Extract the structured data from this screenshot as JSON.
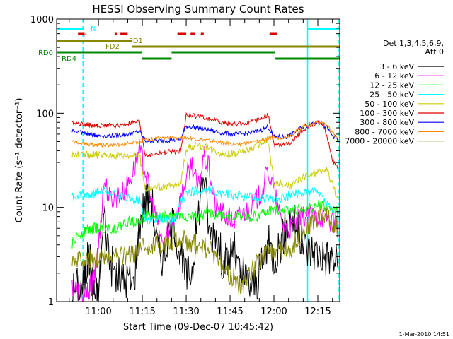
{
  "chart_data": {
    "type": "line",
    "title": "HESSI Observing Summary Count Rates",
    "xlabel": "Start Time (09-Dec-07 10:45:42)",
    "ylabel": "Count Rate (s⁻¹ detector⁻¹)",
    "y_scale": "log",
    "ylim": [
      1,
      1000
    ],
    "y_ticks": [
      {
        "value": 1,
        "label": "1"
      },
      {
        "value": 10,
        "label": "10"
      },
      {
        "value": 100,
        "label": "100"
      },
      {
        "value": 1000,
        "label": "1000"
      }
    ],
    "x_ticks": [
      {
        "value": 660,
        "label": "11:00"
      },
      {
        "value": 675,
        "label": "11:15"
      },
      {
        "value": 690,
        "label": "11:30"
      },
      {
        "value": 705,
        "label": "11:45"
      },
      {
        "value": 720,
        "label": "12:00"
      },
      {
        "value": 735,
        "label": "12:15"
      }
    ],
    "xlim": [
      645.7,
      742.5
    ],
    "legend": {
      "position": "right",
      "header": [
        "Det 1,3,4,5,6,9,",
        "Att 0"
      ],
      "entries": [
        {
          "label": "3 - 6 keV",
          "color": "#000000"
        },
        {
          "label": "6 - 12 keV",
          "color": "#ff00ff"
        },
        {
          "label": "12 - 25 keV",
          "color": "#00ff00"
        },
        {
          "label": "25 - 50 keV",
          "color": "#00ffff"
        },
        {
          "label": "50 - 100 keV",
          "color": "#cccc00"
        },
        {
          "label": "100 - 300 keV",
          "color": "#dd0000"
        },
        {
          "label": "300 - 800 keV",
          "color": "#0000ff"
        },
        {
          "label": "800 - 7000 keV",
          "color": "#ff8800"
        },
        {
          "label": "7000 - 20000 keV",
          "color": "#888800"
        }
      ]
    },
    "series": [
      {
        "name": "3 - 6 keV",
        "color": "#000000",
        "x": [
          651,
          653,
          655,
          656,
          657,
          658,
          659,
          660,
          662,
          664,
          666,
          668,
          670,
          672,
          674,
          676,
          678,
          680,
          682,
          684,
          686,
          688,
          690,
          692,
          694,
          696,
          698,
          700,
          702,
          704,
          706,
          708,
          710,
          712,
          714,
          716,
          718,
          720,
          722,
          724,
          726,
          728,
          730,
          732,
          734,
          736,
          738,
          740,
          742
        ],
        "y": [
          1.3,
          1.5,
          1.5,
          2.5,
          3,
          1.4,
          1.2,
          1.2,
          9,
          2.6,
          1.9,
          1.7,
          1.8,
          1.5,
          7,
          12,
          14,
          4,
          3,
          5,
          7,
          3,
          1.8,
          2.2,
          8,
          25,
          5,
          6,
          3,
          2.5,
          4,
          2,
          1.8,
          1.5,
          1.5,
          2.5,
          4,
          3,
          4,
          6,
          8,
          6,
          4,
          3.5,
          3.5,
          3.2,
          3,
          2.8,
          2.6
        ]
      },
      {
        "name": "6 - 12 keV",
        "color": "#ff00ff",
        "x": [
          651,
          653,
          655,
          656,
          657,
          658,
          659,
          660,
          662,
          664,
          666,
          668,
          670,
          672,
          674,
          676,
          678,
          680,
          682,
          684,
          686,
          688,
          690,
          692,
          694,
          696,
          698,
          700,
          702,
          704,
          706,
          708,
          710,
          712,
          714,
          716,
          718,
          720,
          722,
          724,
          726,
          728,
          730,
          732,
          734,
          736,
          738,
          740,
          742
        ],
        "y": [
          1.5,
          1.3,
          1.2,
          1.2,
          1.4,
          1.6,
          2,
          4,
          20,
          12,
          13,
          14,
          18,
          25,
          40,
          25,
          12,
          7,
          4,
          6,
          8,
          12,
          20,
          30,
          15,
          35,
          25,
          10,
          9,
          8,
          7,
          8,
          9,
          10,
          12,
          15,
          25,
          15,
          8,
          6,
          6,
          7,
          8,
          8,
          8,
          8,
          8,
          7,
          7
        ]
      },
      {
        "name": "12 - 25 keV",
        "color": "#00ff00",
        "x": [
          651,
          653,
          655,
          656,
          657,
          658,
          659,
          660,
          662,
          664,
          666,
          668,
          670,
          672,
          674,
          676,
          678,
          680,
          682,
          684,
          686,
          688,
          690,
          692,
          694,
          696,
          698,
          700,
          702,
          704,
          706,
          708,
          710,
          712,
          714,
          716,
          718,
          720,
          722,
          724,
          726,
          728,
          730,
          732,
          734,
          736,
          738,
          740,
          742
        ],
        "y": [
          4,
          5,
          5.5,
          6,
          6,
          6,
          6,
          6,
          6,
          6,
          6,
          6.5,
          7,
          7,
          7.5,
          8,
          8,
          8,
          8,
          8,
          8,
          8,
          8,
          8,
          8,
          8.5,
          9,
          8.5,
          8.5,
          8,
          8,
          8,
          8,
          8,
          8,
          8.5,
          9,
          9.5,
          9.5,
          9.5,
          9.5,
          9.5,
          9.5,
          9.5,
          10,
          10.5,
          10,
          9.5,
          9
        ]
      },
      {
        "name": "25 - 50 keV",
        "color": "#00ffff",
        "x": [
          651,
          653,
          655,
          656,
          657,
          658,
          659,
          660,
          662,
          664,
          666,
          668,
          670,
          672,
          674,
          676,
          678,
          680,
          682,
          684,
          686,
          688,
          690,
          692,
          694,
          696,
          698,
          700,
          702,
          704,
          706,
          708,
          710,
          712,
          714,
          716,
          718,
          720,
          722,
          724,
          726,
          728,
          730,
          732,
          734,
          736,
          738,
          740,
          742
        ],
        "y": [
          13,
          13,
          13.5,
          13.5,
          14,
          14,
          14,
          14.5,
          14.5,
          14,
          13.5,
          13,
          12.5,
          12,
          12,
          7.5,
          7.5,
          7.5,
          7.5,
          7.5,
          7.5,
          11,
          14,
          14.5,
          15,
          15,
          15,
          14.5,
          14,
          14,
          13.5,
          13.5,
          13,
          13,
          12.5,
          12.5,
          12.5,
          12,
          12,
          13,
          13.5,
          14,
          14.5,
          14.5,
          14.5,
          13,
          11,
          9,
          7.5
        ]
      },
      {
        "name": "50 - 100 keV",
        "color": "#cccc00",
        "x": [
          651,
          653,
          655,
          656,
          657,
          658,
          659,
          660,
          662,
          664,
          666,
          668,
          670,
          672,
          674,
          676,
          678,
          680,
          682,
          684,
          686,
          688,
          690,
          692,
          694,
          696,
          698,
          700,
          702,
          704,
          706,
          708,
          710,
          712,
          714,
          716,
          718,
          720,
          722,
          724,
          726,
          728,
          730,
          732,
          734,
          736,
          738,
          740,
          742
        ],
        "y": [
          36,
          36,
          36,
          36,
          36,
          36,
          36,
          36,
          36,
          36,
          36,
          36,
          36,
          36,
          36,
          16,
          16,
          16.5,
          16.5,
          17,
          17,
          17.5,
          42,
          44,
          45,
          44,
          42,
          40,
          38,
          37,
          37,
          38,
          40,
          42,
          45,
          48,
          50,
          18,
          18,
          17,
          17,
          19,
          21,
          22,
          23,
          24,
          25,
          18,
          12
        ]
      },
      {
        "name": "100 - 300 keV",
        "color": "#dd0000",
        "x": [
          651,
          653,
          655,
          656,
          657,
          658,
          659,
          660,
          662,
          664,
          666,
          668,
          670,
          672,
          674,
          676,
          678,
          680,
          682,
          684,
          686,
          688,
          690,
          692,
          694,
          696,
          698,
          700,
          702,
          704,
          706,
          708,
          710,
          712,
          714,
          716,
          718,
          720,
          722,
          724,
          726,
          728,
          730,
          732,
          734,
          736,
          738,
          740,
          742
        ],
        "y": [
          80,
          78,
          76,
          76,
          75,
          74,
          74,
          74,
          74,
          74,
          74,
          75,
          77,
          79,
          81,
          36,
          36,
          37,
          38,
          39,
          39,
          40,
          95,
          95,
          93,
          90,
          87,
          84,
          80,
          78,
          77,
          77,
          78,
          80,
          84,
          89,
          97,
          46,
          46,
          46,
          48,
          58,
          66,
          72,
          78,
          80,
          60,
          32,
          25
        ]
      },
      {
        "name": "300 - 800 keV",
        "color": "#0000ff",
        "x": [
          651,
          653,
          655,
          656,
          657,
          658,
          659,
          660,
          662,
          664,
          666,
          668,
          670,
          672,
          674,
          676,
          678,
          680,
          682,
          684,
          686,
          688,
          690,
          692,
          694,
          696,
          698,
          700,
          702,
          704,
          706,
          708,
          710,
          712,
          714,
          716,
          718,
          720,
          722,
          724,
          726,
          728,
          730,
          732,
          734,
          736,
          738,
          740,
          742
        ],
        "y": [
          66,
          64,
          62,
          61,
          60,
          59,
          59,
          58,
          58,
          58,
          58,
          59,
          60,
          62,
          64,
          51,
          51,
          51,
          51,
          52,
          52,
          52,
          73,
          72,
          70,
          68,
          66,
          64,
          62,
          61,
          60,
          60,
          61,
          62,
          64,
          67,
          72,
          56,
          56,
          56,
          59,
          66,
          72,
          76,
          80,
          80,
          70,
          58,
          52
        ]
      },
      {
        "name": "800 - 7000 keV",
        "color": "#ff8800",
        "x": [
          651,
          653,
          655,
          656,
          657,
          658,
          659,
          660,
          662,
          664,
          666,
          668,
          670,
          672,
          674,
          676,
          678,
          680,
          682,
          684,
          686,
          688,
          690,
          692,
          694,
          696,
          698,
          700,
          702,
          704,
          706,
          708,
          710,
          712,
          714,
          716,
          718,
          720,
          722,
          724,
          726,
          728,
          730,
          732,
          734,
          736,
          738,
          740,
          742
        ],
        "y": [
          50,
          49,
          48,
          47,
          47,
          46,
          46,
          46,
          46,
          46,
          46,
          47,
          48,
          49,
          50,
          53,
          53,
          54,
          54,
          55,
          55,
          55,
          55,
          54,
          53,
          52,
          51,
          50,
          49,
          48,
          47,
          47,
          48,
          49,
          50,
          52,
          54,
          55,
          55,
          56,
          59,
          66,
          72,
          76,
          80,
          82,
          75,
          62,
          55
        ]
      },
      {
        "name": "7000 - 20000 keV",
        "color": "#888800",
        "x": [
          651,
          653,
          655,
          656,
          657,
          658,
          659,
          660,
          662,
          664,
          666,
          668,
          670,
          672,
          674,
          676,
          678,
          680,
          682,
          684,
          686,
          688,
          690,
          692,
          694,
          696,
          698,
          700,
          702,
          704,
          706,
          708,
          710,
          712,
          714,
          716,
          718,
          720,
          722,
          724,
          726,
          728,
          730,
          732,
          734,
          736,
          738,
          740,
          742
        ],
        "y": [
          3,
          2.8,
          2.8,
          2.8,
          2.8,
          2.8,
          2.8,
          2.8,
          3,
          3,
          3,
          3,
          3,
          3.2,
          3.5,
          3.8,
          4,
          4,
          4.2,
          4.2,
          4.5,
          4.5,
          4.5,
          4.2,
          4,
          3.8,
          3.5,
          3,
          2.5,
          2,
          1.8,
          1.5,
          1.6,
          2,
          2.5,
          3,
          3.2,
          3.5,
          3.5,
          3.5,
          3.8,
          4.5,
          5.5,
          6.5,
          7.5,
          8,
          8,
          7,
          6
        ]
      }
    ],
    "flags": {
      "F": {
        "label": "F",
        "color": "#dd0000",
        "segments": [
          [
            653,
            655
          ],
          [
            665.5,
            666.5
          ],
          [
            667.5,
            670
          ],
          [
            687,
            690
          ],
          [
            691.5,
            693
          ],
          [
            695,
            696
          ],
          [
            718.5,
            721
          ]
        ]
      },
      "N": {
        "label": "N",
        "color": "#00ffff",
        "segments": [
          [
            645.7,
            654.7
          ],
          [
            731.5,
            742.5
          ]
        ]
      },
      "FD1": {
        "label": "FD1",
        "color": "#888800",
        "segments": [
          [
            645.7,
            671.6
          ]
        ]
      },
      "FD2": {
        "label": "FD2",
        "color": "#888800",
        "segments": [
          [
            671.6,
            742.5
          ]
        ]
      },
      "RD0": {
        "label": "RD0",
        "color": "#008800",
        "segments": [
          [
            645.7,
            675
          ],
          [
            685,
            720.5
          ]
        ]
      },
      "RD4": {
        "label": "RD4",
        "color": "#008800",
        "segments": [
          [
            675,
            685
          ],
          [
            720.5,
            742.5
          ]
        ]
      }
    },
    "vertical_markers": [
      {
        "x": 654.7,
        "style": "dashed",
        "color": "#00ffff"
      },
      {
        "x": 731.5,
        "style": "solid",
        "color": "#00ffff"
      },
      {
        "x": 742,
        "style": "dashed",
        "color": "#00ffff"
      }
    ],
    "footer_timestamp": "1-Mar-2010 14:51"
  }
}
